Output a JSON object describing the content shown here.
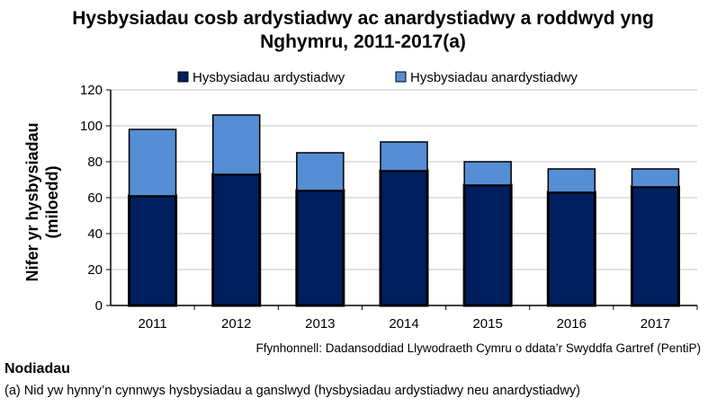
{
  "chart_data": {
    "type": "bar",
    "stacked": true,
    "title": "Hysbysiadau cosb ardystiadwy ac anardystiadwy a roddwyd yng Nghymru, 2011-2017(a)",
    "title_lines": [
      "Hysbysiadau cosb ardystiadwy ac anardystiadwy a roddwyd yng",
      "Nghymru, 2011-2017(a)"
    ],
    "ylabel_lines": [
      "Nifer yr hysbysiadau",
      "(miloedd)"
    ],
    "xlabel": "",
    "categories": [
      "2011",
      "2012",
      "2013",
      "2014",
      "2015",
      "2016",
      "2017"
    ],
    "series": [
      {
        "name": "Hysbysiadau ardystiadwy",
        "color": "#001f5f",
        "values": [
          61,
          73,
          64,
          75,
          67,
          63,
          66
        ]
      },
      {
        "name": "Hysbysiadau anardystiadwy",
        "color": "#558ed5",
        "values": [
          37,
          33,
          21,
          16,
          13,
          13,
          10
        ]
      }
    ],
    "ylim": [
      0,
      120
    ],
    "yticks": [
      "0",
      "20",
      "40",
      "60",
      "80",
      "100",
      "120"
    ],
    "grid": true,
    "legend_position": "top"
  },
  "source": "Ffynhonnell: Dadansoddiad Llywodraeth Cymru o ddata’r Swyddfa Gartref (PentiP)",
  "notes": {
    "heading": "Nodiadau",
    "items": [
      "(a) Nid yw hynny’n cynnwys hysbysiadau a ganslwyd (hysbysiadau ardystiadwy neu anardystiadwy)"
    ]
  }
}
